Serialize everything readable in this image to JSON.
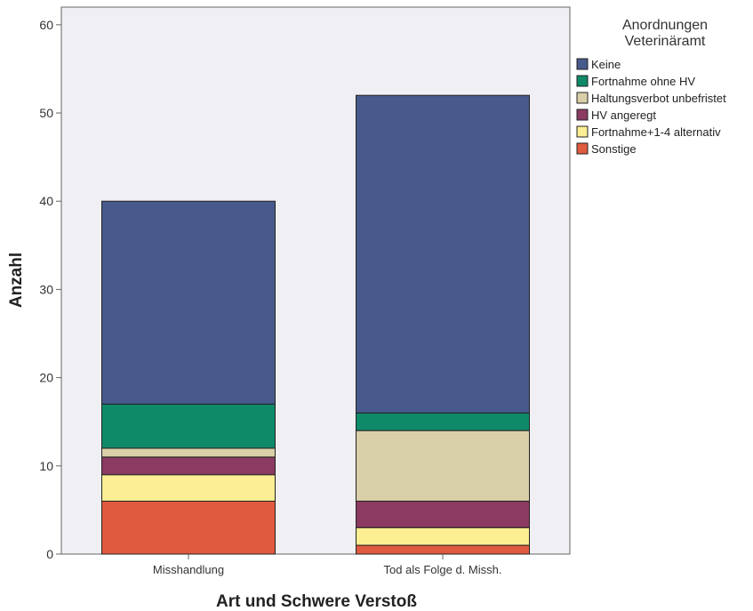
{
  "chart_data": {
    "type": "bar",
    "stacked": true,
    "categories": [
      "Misshandlung",
      "Tod als Folge d. Missh."
    ],
    "xlabel": "Art und Schwere Verstoß",
    "ylabel": "Anzahl",
    "ylim": [
      0,
      62
    ],
    "yticks": [
      0,
      10,
      20,
      30,
      40,
      50,
      60
    ],
    "grid": false,
    "legend": {
      "title_lines": [
        "Anordnungen",
        "Veterinäramt"
      ],
      "placement": "right"
    },
    "series": [
      {
        "name": "Sonstige",
        "color": "#e05a3f",
        "values": [
          6,
          1
        ]
      },
      {
        "name": "Fortnahme+1-4 alternativ",
        "color": "#fbee93",
        "values": [
          3,
          2
        ]
      },
      {
        "name": "HV angeregt",
        "color": "#8b3a62",
        "values": [
          2,
          3
        ]
      },
      {
        "name": "Haltungsverbot unbefristet",
        "color": "#d9cfa8",
        "values": [
          1,
          8
        ]
      },
      {
        "name": "Fortnahme ohne HV",
        "color": "#0f8a68",
        "values": [
          5,
          2
        ]
      },
      {
        "name": "Keine",
        "color": "#485a8c",
        "values": [
          23,
          36
        ]
      }
    ],
    "legend_order": [
      "Keine",
      "Fortnahme ohne HV",
      "Haltungsverbot unbefristet",
      "HV angeregt",
      "Fortnahme+1-4 alternativ",
      "Sonstige"
    ],
    "colors": {
      "plot_background": "#f0f0f4",
      "axis": "#666666"
    }
  }
}
